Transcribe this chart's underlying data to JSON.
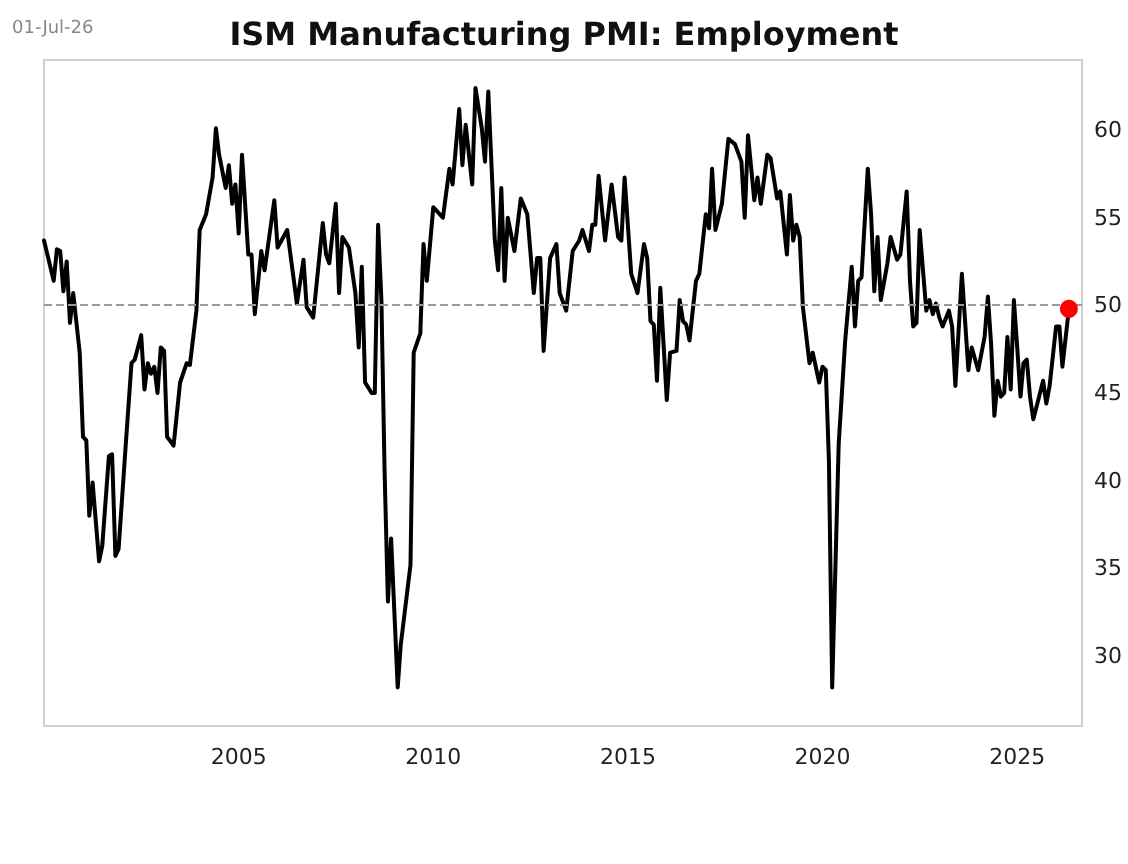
{
  "chart_data": {
    "type": "line",
    "title": "ISM Manufacturing PMI: Employment",
    "annotations": [
      "01-Jul-26"
    ],
    "xlim": [
      "2000-01",
      "2026-09"
    ],
    "xticks": [
      "2005",
      "2010",
      "2015",
      "2020",
      "2025"
    ],
    "ylim": [
      26,
      64
    ],
    "yticks": [
      30,
      35,
      40,
      45,
      50,
      55,
      60
    ],
    "grid": false,
    "marker": "none",
    "line_style": "solid",
    "ref_lines": [
      {
        "axis": "y",
        "value": 50,
        "color": "#999999",
        "line_style": "dashed"
      }
    ],
    "series": [
      {
        "color": "#000000",
        "x": [
          "2000-01",
          "2000-04",
          "2000-05",
          "2000-06",
          "2000-07",
          "2000-08",
          "2000-09",
          "2000-10",
          "2000-12",
          "2001-01",
          "2001-02",
          "2001-03",
          "2001-04",
          "2001-06",
          "2001-07",
          "2001-09",
          "2001-10",
          "2001-11",
          "2001-12",
          "2002-02",
          "2002-04",
          "2002-05",
          "2002-07",
          "2002-08",
          "2002-09",
          "2002-10",
          "2002-11",
          "2002-12",
          "2003-01",
          "2003-02",
          "2003-03",
          "2003-05",
          "2003-07",
          "2003-09",
          "2003-10",
          "2003-12",
          "2004-01",
          "2004-03",
          "2004-05",
          "2004-06",
          "2004-07",
          "2004-09",
          "2004-10",
          "2004-11",
          "2004-12",
          "2005-01",
          "2005-02",
          "2005-04",
          "2005-05",
          "2005-06",
          "2005-08",
          "2005-09",
          "2005-12",
          "2006-01",
          "2006-04",
          "2006-07",
          "2006-09",
          "2006-10",
          "2006-12",
          "2007-03",
          "2007-04",
          "2007-05",
          "2007-07",
          "2007-08",
          "2007-09",
          "2007-11",
          "2008-01",
          "2008-02",
          "2008-03",
          "2008-04",
          "2008-06",
          "2008-07",
          "2008-08",
          "2008-09",
          "2008-10",
          "2008-11",
          "2008-12",
          "2009-02",
          "2009-03",
          "2009-06",
          "2009-07",
          "2009-09",
          "2009-10",
          "2009-11",
          "2010-01",
          "2010-04",
          "2010-06",
          "2010-07",
          "2010-09",
          "2010-10",
          "2010-11",
          "2011-01",
          "2011-02",
          "2011-04",
          "2011-05",
          "2011-06",
          "2011-08",
          "2011-09",
          "2011-10",
          "2011-11",
          "2011-12",
          "2012-02",
          "2012-04",
          "2012-06",
          "2012-08",
          "2012-09",
          "2012-10",
          "2012-11",
          "2013-01",
          "2013-03",
          "2013-04",
          "2013-06",
          "2013-08",
          "2013-10",
          "2013-11",
          "2014-01",
          "2014-02",
          "2014-03",
          "2014-04",
          "2014-06",
          "2014-08",
          "2014-10",
          "2014-11",
          "2014-12",
          "2015-02",
          "2015-04",
          "2015-06",
          "2015-07",
          "2015-08",
          "2015-09",
          "2015-10",
          "2015-11",
          "2016-01",
          "2016-02",
          "2016-04",
          "2016-05",
          "2016-06",
          "2016-07",
          "2016-08",
          "2016-10",
          "2016-11",
          "2017-01",
          "2017-02",
          "2017-03",
          "2017-04",
          "2017-06",
          "2017-08",
          "2017-10",
          "2017-12",
          "2018-01",
          "2018-02",
          "2018-04",
          "2018-05",
          "2018-06",
          "2018-08",
          "2018-09",
          "2018-11",
          "2018-12",
          "2019-02",
          "2019-03",
          "2019-04",
          "2019-05",
          "2019-06",
          "2019-07",
          "2019-09",
          "2019-10",
          "2019-12",
          "2020-01",
          "2020-02",
          "2020-03",
          "2020-04",
          "2020-06",
          "2020-07",
          "2020-08",
          "2020-10",
          "2020-11",
          "2020-12",
          "2021-01",
          "2021-03",
          "2021-04",
          "2021-05",
          "2021-06",
          "2021-07",
          "2021-09",
          "2021-10",
          "2021-12",
          "2022-01",
          "2022-03",
          "2022-04",
          "2022-05",
          "2022-06",
          "2022-07",
          "2022-09",
          "2022-10",
          "2022-11",
          "2022-12",
          "2023-01",
          "2023-02",
          "2023-04",
          "2023-05",
          "2023-06",
          "2023-08",
          "2023-10",
          "2023-11",
          "2024-01",
          "2024-03",
          "2024-04",
          "2024-05",
          "2024-06",
          "2024-07",
          "2024-08",
          "2024-09",
          "2024-10",
          "2024-11",
          "2024-12",
          "2025-01",
          "2025-02",
          "2025-03",
          "2025-04",
          "2025-05",
          "2025-06",
          "2025-07",
          "2025-09",
          "2025-10",
          "2025-11",
          "2026-01",
          "2026-02",
          "2026-03",
          "2026-05"
        ],
        "values": [
          53.7,
          51.4,
          53.2,
          53.1,
          50.8,
          52.5,
          49.0,
          50.7,
          47.3,
          42.5,
          42.3,
          38.0,
          39.9,
          35.4,
          36.3,
          41.4,
          41.5,
          35.7,
          36.1,
          41.6,
          46.7,
          46.9,
          48.3,
          45.2,
          46.7,
          46.1,
          46.5,
          45.0,
          47.6,
          47.4,
          42.5,
          42.0,
          45.6,
          46.7,
          46.6,
          49.7,
          54.3,
          55.2,
          57.3,
          60.1,
          58.6,
          56.7,
          58.0,
          55.8,
          56.9,
          54.1,
          58.6,
          52.9,
          52.9,
          49.5,
          53.1,
          52.0,
          56.0,
          53.3,
          54.3,
          50.1,
          52.6,
          49.9,
          49.3,
          54.7,
          52.9,
          52.4,
          55.8,
          50.7,
          53.9,
          53.3,
          50.7,
          47.6,
          52.2,
          45.6,
          45.0,
          45.0,
          54.6,
          50.3,
          40.5,
          33.1,
          36.7,
          28.2,
          30.6,
          35.2,
          47.3,
          48.4,
          53.5,
          51.4,
          55.6,
          55.0,
          57.8,
          56.9,
          61.2,
          58.0,
          60.3,
          56.9,
          62.4,
          60.1,
          58.2,
          62.2,
          53.7,
          52.0,
          56.7,
          51.4,
          55.0,
          53.1,
          56.1,
          55.2,
          50.7,
          52.7,
          52.7,
          47.4,
          52.7,
          53.5,
          50.7,
          49.7,
          53.1,
          53.7,
          54.3,
          53.1,
          54.6,
          54.6,
          57.4,
          53.7,
          56.9,
          53.9,
          53.7,
          57.3,
          51.8,
          50.7,
          53.5,
          52.7,
          49.1,
          48.9,
          45.7,
          51.0,
          44.6,
          47.3,
          47.4,
          50.3,
          49.1,
          48.9,
          48.0,
          51.4,
          51.8,
          55.2,
          54.4,
          57.8,
          54.3,
          55.8,
          59.5,
          59.2,
          58.2,
          55.0,
          59.7,
          56.0,
          57.3,
          55.8,
          58.6,
          58.4,
          56.1,
          56.5,
          52.9,
          56.3,
          53.7,
          54.6,
          53.9,
          49.9,
          46.7,
          47.3,
          45.6,
          46.5,
          46.3,
          41.2,
          28.2,
          42.1,
          45.0,
          48.0,
          52.2,
          48.8,
          51.4,
          51.6,
          57.8,
          55.2,
          50.8,
          53.9,
          50.3,
          52.4,
          53.9,
          52.6,
          52.9,
          56.5,
          51.4,
          48.8,
          49.0,
          54.3,
          49.7,
          50.3,
          49.5,
          50.1,
          49.3,
          48.8,
          49.7,
          48.8,
          45.4,
          51.8,
          46.3,
          47.6,
          46.3,
          48.2,
          50.5,
          47.8,
          43.7,
          45.7,
          44.8,
          45.0,
          48.2,
          45.2,
          50.3,
          47.6,
          44.8,
          46.7,
          46.9,
          44.8,
          43.5,
          44.2,
          45.7,
          44.4,
          45.4,
          48.8,
          48.8,
          46.5,
          49.8
        ]
      },
      {
        "type": "scatter",
        "marker": "circle",
        "color": "#ff0000",
        "x": [
          "2026-05"
        ],
        "values": [
          49.8
        ]
      }
    ]
  }
}
